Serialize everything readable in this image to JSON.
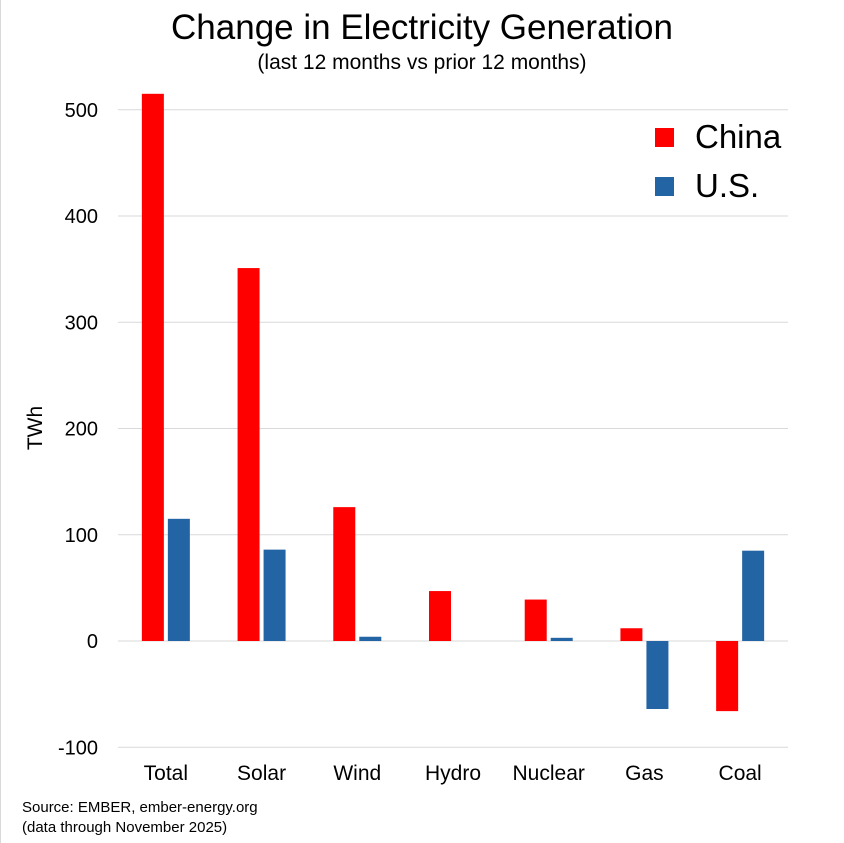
{
  "title": "Change in Electricity Generation",
  "subtitle": "(last 12 months vs prior 12 months)",
  "source_line1": "Source: EMBER, ember-energy.org",
  "source_line2": "(data through November 2025)",
  "chart_data": {
    "type": "bar",
    "title": "Change in Electricity Generation",
    "subtitle": "(last 12 months vs prior 12 months)",
    "ylabel": "TWh",
    "xlabel": "",
    "categories": [
      "Total",
      "Solar",
      "Wind",
      "Hydro",
      "Nuclear",
      "Gas",
      "Coal"
    ],
    "series": [
      {
        "name": "China",
        "color": "#ff0000",
        "values": [
          515,
          351,
          126,
          47,
          39,
          12,
          -66
        ]
      },
      {
        "name": "U.S.",
        "color": "#2365a4",
        "values": [
          115,
          86,
          4,
          0,
          3,
          -64,
          85
        ]
      }
    ],
    "ylim": [
      -100,
      500
    ],
    "yticks": [
      -100,
      0,
      100,
      200,
      300,
      400,
      500
    ],
    "grid": true,
    "legend_position": "top-right"
  }
}
